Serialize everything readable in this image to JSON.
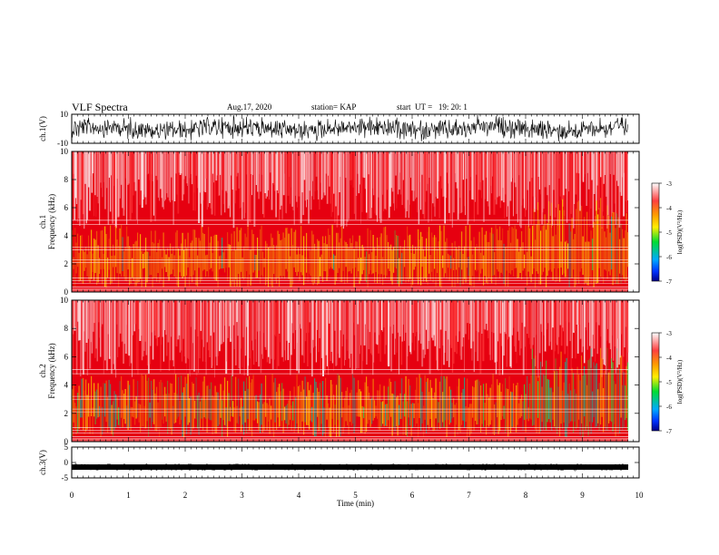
{
  "header": {
    "title": "VLF Spectra",
    "date": "Aug.17, 2020",
    "station": "station= KAP",
    "start": "start  UT =   19: 20: 1"
  },
  "colorbars": [
    {
      "label": "log(PSD)(V²/Hz)",
      "ticks": [
        "-3",
        "-4",
        "-5",
        "-6",
        "-7"
      ]
    },
    {
      "label": "log(PSD)(V²/Hz)",
      "ticks": [
        "-3",
        "-4",
        "-5",
        "-6",
        "-7"
      ]
    }
  ],
  "colors": {
    "background_psd": "#e8000a",
    "mid_psd": "#ffe600",
    "low_psd": "#00d84a",
    "trace": "#000000"
  },
  "chart_data": [
    {
      "type": "line",
      "ylabel": "ch.1(V)",
      "yticks": [
        "10",
        "-10"
      ],
      "ylim": [
        -10,
        10
      ],
      "xlim": [
        0,
        10
      ],
      "description_values": {
        "typical_range": [
          -10,
          10
        ]
      }
    },
    {
      "type": "heatmap",
      "ylabel": "ch.1\nFrequency (kHz)",
      "ylabel_lines": [
        "ch.1",
        "Frequency  (kHz)"
      ],
      "yticks": [
        "0",
        "2",
        "4",
        "6",
        "8",
        "10"
      ],
      "ylim": [
        0,
        10
      ],
      "xlim": [
        0,
        10
      ],
      "colorscale_range": [
        -7,
        -3
      ]
    },
    {
      "type": "heatmap",
      "ylabel_lines": [
        "ch.2",
        "Frequency  (kHz)"
      ],
      "yticks": [
        "0",
        "2",
        "4",
        "6",
        "8",
        "10"
      ],
      "ylim": [
        0,
        10
      ],
      "xlim": [
        0,
        10
      ],
      "colorscale_range": [
        -7,
        -3
      ]
    },
    {
      "type": "line",
      "ylabel": "ch.3(V)",
      "yticks": [
        "5",
        "0",
        "-5"
      ],
      "ylim": [
        -5,
        5
      ],
      "xlim": [
        0,
        10
      ],
      "xlabel": "Time  (min)",
      "xticks": [
        "0",
        "1",
        "2",
        "3",
        "4",
        "5",
        "6",
        "7",
        "8",
        "9",
        "10"
      ],
      "baseline_value": -1.5
    }
  ]
}
